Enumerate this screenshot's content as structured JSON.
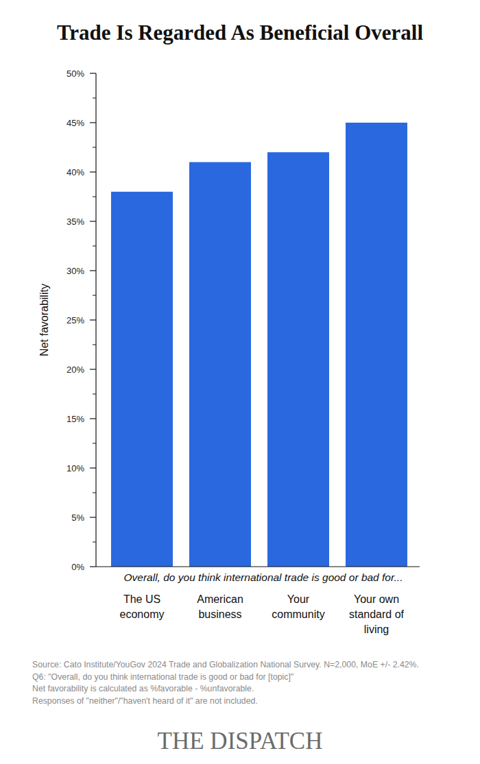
{
  "chart_data": {
    "type": "bar",
    "title": "Trade Is Regarded As Beneficial Overall",
    "y_label": "Net favorability",
    "x_label": "Overall, do you think international trade is good or bad for...",
    "categories": [
      "The US economy",
      "American business",
      "Your community",
      "Your own standard of living"
    ],
    "values": [
      38,
      41,
      42,
      45
    ],
    "color": "#2a68df",
    "ylim": [
      0,
      50
    ],
    "yticks": [
      {
        "value": 0,
        "label": "0%"
      },
      {
        "value": 5,
        "label": "5%"
      },
      {
        "value": 10,
        "label": "10%"
      },
      {
        "value": 15,
        "label": "15%"
      },
      {
        "value": 20,
        "label": "20%"
      },
      {
        "value": 25,
        "label": "25%"
      },
      {
        "value": 30,
        "label": "30%"
      },
      {
        "value": 35,
        "label": "35%"
      },
      {
        "value": 40,
        "label": "40%"
      },
      {
        "value": 45,
        "label": "45%"
      },
      {
        "value": 50,
        "label": "50%"
      }
    ],
    "grid": false,
    "notes": [
      "Source: Cato Institute/YouGov 2024 Trade and Globalization National Survey. N=2,000, MoE +/- 2.42%.",
      "Q6: \"Overall, do you think international trade is good or bad for [topic]\"",
      "Net favorability is calculated as %favorable - %unfavorable.",
      "Responses of \"neither\"/\"haven't heard of it\" are not included."
    ],
    "publisher": "THE DISPATCH"
  }
}
